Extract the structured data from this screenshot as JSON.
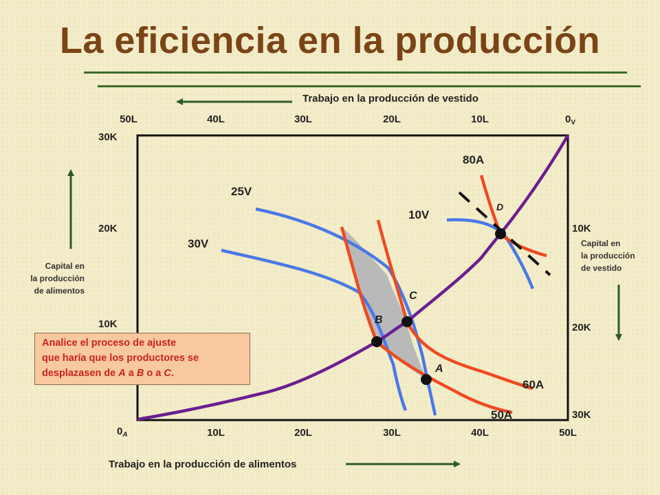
{
  "title": "La eficiencia en la producción",
  "top_axis": {
    "label": "Trabajo en la producción de vestido",
    "ticks": [
      "50L",
      "40L",
      "30L",
      "20L",
      "10L"
    ],
    "origin_main": "0",
    "origin_sub": "V"
  },
  "bottom_axis": {
    "label": "Trabajo en la producción de alimentos",
    "ticks": [
      "10L",
      "20L",
      "30L",
      "40L",
      "50L"
    ],
    "origin_main": "0",
    "origin_sub": "A"
  },
  "left_axis": {
    "ticks": [
      "30K",
      "20K",
      "10K"
    ],
    "label_lines": [
      "Capital en",
      "la producción",
      "de alimentos"
    ]
  },
  "right_axis": {
    "ticks": [
      "10K",
      "20K",
      "30K"
    ],
    "label_lines": [
      "Capital en",
      "la producción",
      "de vestido"
    ]
  },
  "isoquants_food": [
    "50A",
    "60A",
    "80A"
  ],
  "isoquants_clothing": [
    "30V",
    "25V",
    "10V"
  ],
  "points": [
    "A",
    "B",
    "C",
    "D"
  ],
  "colors": {
    "title": "#7a4417",
    "rule": "#3c6b2a",
    "food_isoquant": "#ee4a22",
    "clothing_isoquant": "#4a78e8",
    "contract_curve": "#6a1f90",
    "shaded_region": "#b9b9b9",
    "note_bg": "#f7c99d",
    "note_text": "#c7241d",
    "arrow": "#2f5a2a"
  },
  "note": {
    "line1": "Analice el proceso de ajuste",
    "line2": "que haría que los productores se",
    "line3_pre": "desplazasen de ",
    "line3_a": "A",
    "line3_mid": " a ",
    "line3_b": "B",
    "line3_mid2": " o a ",
    "line3_c": "C",
    "line3_end": "."
  }
}
